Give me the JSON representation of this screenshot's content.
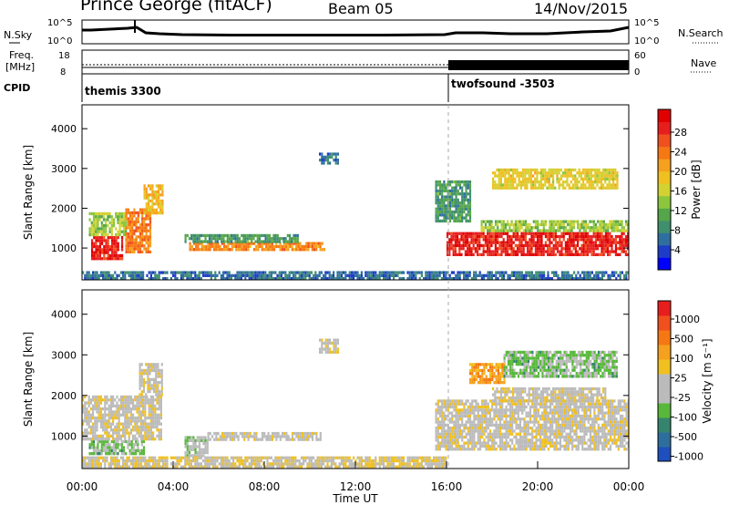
{
  "header": {
    "title": "Prince George (fitACF)",
    "beam": "Beam 05",
    "date": "14/Nov/2015"
  },
  "top_panel": {
    "nsky_label": "N.Sky",
    "nsearch_label": "N.Search",
    "noise_ticks": [
      "10^5",
      "10^0"
    ],
    "freq_label_1": "Freq.",
    "freq_label_2": "[MHz]",
    "freq_ticks": [
      "18",
      "8"
    ],
    "nave_label": "Nave",
    "nave_ticks": [
      "60",
      "0"
    ],
    "cpid_label": "CPID",
    "cpid_programs": [
      {
        "name": "themis 3300",
        "start_hour": 0
      },
      {
        "name": "twofsound -3503",
        "start_hour": 16
      }
    ]
  },
  "colorbars": {
    "power": {
      "label": "Power [dB]",
      "ticks": [
        "28",
        "24",
        "20",
        "16",
        "12",
        "8",
        "4"
      ],
      "colors": [
        "#0000ff",
        "#1e3cc8",
        "#2f6fa0",
        "#3f8f6e",
        "#55a64a",
        "#8cc63c",
        "#d2d232",
        "#f0c020",
        "#f5a01e",
        "#f57814",
        "#f0501e",
        "#e81e1e",
        "#e00000"
      ]
    },
    "velocity": {
      "label": "Velocity [m s⁻¹]",
      "ticks": [
        "1000",
        "500",
        "100",
        "25",
        "-25",
        "-100",
        "-500",
        "-1000"
      ],
      "colors": [
        "#1f4fbf",
        "#2e6e9e",
        "#35856e",
        "#58b83a",
        "#bbbbbb",
        "#bbbbbb",
        "#f0c020",
        "#f5a01e",
        "#f57814",
        "#f0501e",
        "#e81e1e"
      ]
    }
  },
  "chart_data": [
    {
      "type": "heatmap",
      "name": "power",
      "ylabel": "Slant Range [km]",
      "ylim": [
        200,
        4600
      ],
      "yticks": [
        "1000",
        "2000",
        "3000",
        "4000"
      ],
      "xlim": [
        0,
        24
      ],
      "clim": [
        0,
        30
      ],
      "regions": [
        {
          "t0": 0.4,
          "t1": 1.8,
          "r0": 700,
          "r1": 1300,
          "value": 27
        },
        {
          "t0": 0.3,
          "t1": 1.9,
          "r0": 1300,
          "r1": 1900,
          "value": 13
        },
        {
          "t0": 1.9,
          "t1": 3.0,
          "r0": 900,
          "r1": 2000,
          "value": 22
        },
        {
          "t0": 2.7,
          "t1": 3.5,
          "r0": 1900,
          "r1": 2600,
          "value": 18
        },
        {
          "t0": 4.7,
          "t1": 10.6,
          "r0": 950,
          "r1": 1150,
          "value": 21
        },
        {
          "t0": 4.5,
          "t1": 9.5,
          "r0": 1150,
          "r1": 1350,
          "value": 9
        },
        {
          "t0": 10.4,
          "t1": 11.2,
          "r0": 3100,
          "r1": 3400,
          "value": 6
        },
        {
          "t0": 0.0,
          "t1": 24.0,
          "r0": 250,
          "r1": 420,
          "value": 6
        },
        {
          "t0": 16.0,
          "t1": 24.0,
          "r0": 800,
          "r1": 1400,
          "value": 27
        },
        {
          "t0": 17.5,
          "t1": 24.0,
          "r0": 1400,
          "r1": 1700,
          "value": 13
        },
        {
          "t0": 18.0,
          "t1": 23.5,
          "r0": 2500,
          "r1": 3000,
          "value": 16
        },
        {
          "t0": 15.5,
          "t1": 17.0,
          "r0": 1700,
          "r1": 2700,
          "value": 9
        }
      ]
    },
    {
      "type": "heatmap",
      "name": "velocity",
      "xlabel": "Time UT",
      "ylabel": "Slant Range [km]",
      "ylim": [
        200,
        4600
      ],
      "yticks": [
        "1000",
        "2000",
        "3000",
        "4000"
      ],
      "xlim": [
        0,
        24
      ],
      "xticks": [
        "00:00",
        "04:00",
        "08:00",
        "12:00",
        "16:00",
        "20:00",
        "00:00"
      ],
      "clim": [
        -1000,
        1000
      ],
      "regions": [
        {
          "t0": 0.3,
          "t1": 2.7,
          "r0": 600,
          "r1": 900,
          "value": -300
        },
        {
          "t0": 0.0,
          "t1": 3.5,
          "r0": 900,
          "r1": 2000,
          "value": 0
        },
        {
          "t0": 2.5,
          "t1": 3.5,
          "r0": 2000,
          "r1": 2800,
          "value": 0
        },
        {
          "t0": 4.5,
          "t1": 5.5,
          "r0": 500,
          "r1": 1000,
          "value": -150
        },
        {
          "t0": 5.5,
          "t1": 10.5,
          "r0": 900,
          "r1": 1100,
          "value": 0
        },
        {
          "t0": 0.0,
          "t1": 16.0,
          "r0": 250,
          "r1": 500,
          "value": 60
        },
        {
          "t0": 10.4,
          "t1": 11.2,
          "r0": 3100,
          "r1": 3400,
          "value": 0
        },
        {
          "t0": 15.5,
          "t1": 24.0,
          "r0": 700,
          "r1": 1900,
          "value": 0
        },
        {
          "t0": 18.0,
          "t1": 23.0,
          "r0": 1900,
          "r1": 2200,
          "value": 0
        },
        {
          "t0": 17.0,
          "t1": 18.5,
          "r0": 2300,
          "r1": 2800,
          "value": 400
        },
        {
          "t0": 18.5,
          "t1": 23.5,
          "r0": 2500,
          "r1": 3100,
          "value": -300
        }
      ]
    }
  ]
}
